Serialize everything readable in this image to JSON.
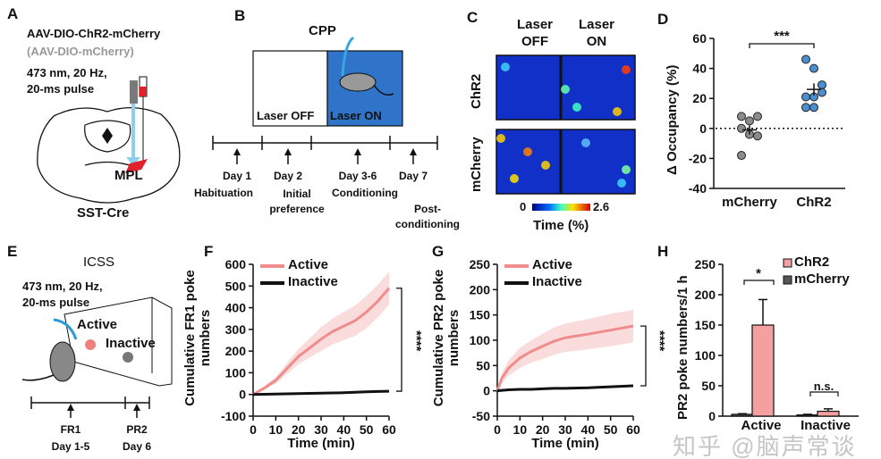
{
  "panels": {
    "A": {
      "label": "A",
      "construct": "AAV-DIO-ChR2-mCherry",
      "control": "(AAV-DIO-mCherry)",
      "stim_line1": "473 nm, 20 Hz,",
      "stim_line2": "20-ms pulse",
      "region": "MPL",
      "mouse": "SST-Cre",
      "colors": {
        "region": "#e0202a",
        "fiber": "#8ecfee"
      }
    },
    "B": {
      "label": "B",
      "title": "CPP",
      "left_chamber": "Laser OFF",
      "right_chamber": "Laser ON",
      "chamber_color": "#2f74c8",
      "timeline": [
        {
          "day": "Day 1",
          "phase": "Habituation"
        },
        {
          "day": "Day 2",
          "phase": "Initial preference"
        },
        {
          "day": "Day 3-6",
          "phase": "Conditioning"
        },
        {
          "day": "Day 7",
          "phase": "Post-conditioning"
        }
      ]
    },
    "C": {
      "label": "C",
      "col1": "Laser OFF",
      "col2": "Laser ON",
      "row1": "ChR2",
      "row2": "mCherry",
      "colorbar_min": "0",
      "colorbar_max": "2.6",
      "colorbar_label": "Time (%)"
    },
    "E": {
      "label": "E",
      "title": "ICSS",
      "stim_line1": "473 nm, 20 Hz,",
      "stim_line2": "20-ms pulse",
      "active": "Active",
      "inactive": "Inactive",
      "timeline": [
        {
          "schedule": "FR1",
          "day": "Day 1-5"
        },
        {
          "schedule": "PR2",
          "day": "Day 6"
        }
      ]
    },
    "D": {
      "label": "D"
    },
    "F": {
      "label": "F"
    },
    "G": {
      "label": "G"
    },
    "H": {
      "label": "H"
    }
  },
  "watermark": "知乎 @脑声常谈",
  "chart_data": [
    {
      "panel": "D",
      "type": "scatter",
      "ylabel": "Δ Occupancy (%)",
      "ylim": [
        -40,
        60
      ],
      "yticks": [
        -40,
        -20,
        0,
        20,
        40,
        60
      ],
      "categories": [
        "mCherry",
        "ChR2"
      ],
      "series": [
        {
          "values": [
            8,
            5,
            8,
            0,
            -4,
            -5,
            -18
          ],
          "mean": -1,
          "sem": 3,
          "color": "#8c8c8c"
        },
        {
          "values": [
            46,
            40,
            29,
            21,
            21,
            24,
            14,
            14
          ],
          "mean": 26,
          "sem": 4,
          "color": "#4a8fcf"
        }
      ],
      "significance": "***",
      "reference_line": 0
    },
    {
      "panel": "F",
      "type": "line",
      "xlabel": "Time (min)",
      "ylabel": "Cumulative FR1 poke numbers",
      "xlim": [
        0,
        60
      ],
      "ylim": [
        -100,
        600
      ],
      "xticks": [
        0,
        10,
        20,
        30,
        40,
        50,
        60
      ],
      "yticks": [
        -100,
        0,
        100,
        200,
        300,
        400,
        500,
        600
      ],
      "x": [
        0,
        5,
        10,
        15,
        20,
        25,
        30,
        35,
        40,
        45,
        50,
        55,
        60
      ],
      "series": [
        {
          "name": "Active",
          "values": [
            0,
            30,
            65,
            120,
            175,
            215,
            255,
            290,
            315,
            340,
            380,
            430,
            490
          ],
          "error": [
            0,
            8,
            15,
            25,
            35,
            45,
            55,
            60,
            65,
            70,
            75,
            75,
            75
          ],
          "color": "#f08c8c"
        },
        {
          "name": "Inactive",
          "values": [
            0,
            1,
            2,
            3,
            4,
            5,
            6,
            7,
            8,
            10,
            12,
            14,
            15
          ],
          "error": [
            0,
            0,
            0,
            0,
            0,
            0,
            0,
            0,
            0,
            0,
            0,
            0,
            0
          ],
          "color": "#111111"
        }
      ],
      "legend": "top-left",
      "significance": "****"
    },
    {
      "panel": "G",
      "type": "line",
      "xlabel": "Time (min)",
      "ylabel": "Cumulative PR2 poke numbers",
      "xlim": [
        0,
        60
      ],
      "ylim": [
        -50,
        250
      ],
      "xticks": [
        0,
        10,
        20,
        30,
        40,
        50,
        60
      ],
      "yticks": [
        -50,
        0,
        50,
        100,
        150,
        200,
        250
      ],
      "x": [
        0,
        2,
        5,
        10,
        15,
        20,
        25,
        30,
        40,
        50,
        60
      ],
      "series": [
        {
          "name": "Active",
          "values": [
            0,
            25,
            45,
            65,
            78,
            88,
            98,
            105,
            112,
            120,
            128
          ],
          "error": [
            0,
            10,
            15,
            20,
            22,
            25,
            27,
            28,
            30,
            32,
            32
          ],
          "color": "#f08c8c"
        },
        {
          "name": "Inactive",
          "values": [
            0,
            1,
            2,
            3,
            3,
            4,
            5,
            5,
            6,
            8,
            10
          ],
          "error": [
            0,
            0,
            0,
            0,
            0,
            0,
            0,
            0,
            0,
            0,
            0
          ],
          "color": "#111111"
        }
      ],
      "legend": "top-left",
      "significance": "****"
    },
    {
      "panel": "H",
      "type": "bar",
      "ylabel": "PR2 poke numbers/1 h",
      "ylim": [
        0,
        250
      ],
      "yticks": [
        0,
        50,
        100,
        150,
        200,
        250
      ],
      "categories": [
        "Active",
        "Inactive"
      ],
      "series": [
        {
          "name": "ChR2",
          "values": [
            150,
            8
          ],
          "error": [
            42,
            4
          ],
          "color": "#f4a0a0"
        },
        {
          "name": "mCherry",
          "values": [
            3,
            2
          ],
          "error": [
            1,
            1
          ],
          "color": "#555555"
        }
      ],
      "legend": "top-right",
      "significance": [
        "*",
        "n.s."
      ]
    }
  ]
}
